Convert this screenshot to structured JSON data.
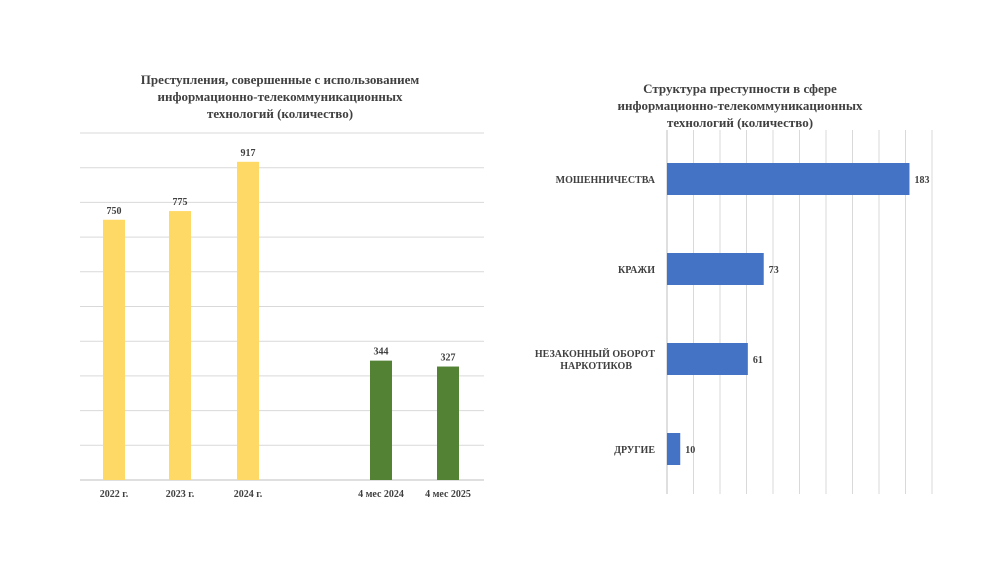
{
  "chart_data": [
    {
      "type": "bar",
      "title": "Преступления, совершенные с использованием\nинформационно-телекоммуникационных\nтехнологий (количество)",
      "categories": [
        "2022 г.",
        "2023 г.",
        "2024 г.",
        "4 мес 2024",
        "4 мес 2025"
      ],
      "values": [
        750,
        775,
        917,
        344,
        327
      ],
      "bar_colors": [
        "#FFD966",
        "#FFD966",
        "#FFD966",
        "#548235",
        "#548235"
      ],
      "ylim": [
        0,
        1000
      ],
      "grid": true,
      "data_labels": true
    },
    {
      "type": "bar",
      "orientation": "horizontal",
      "title": "Структура преступности в сфере\nинформационно-телекоммуникационных\nтехнологий (количество)",
      "categories": [
        "МОШЕННИЧЕСТВА",
        "КРАЖИ",
        "НЕЗАКОННЫЙ  ОБОРОТ\nНАРКОТИКОВ",
        "ДРУГИЕ"
      ],
      "values": [
        183,
        73,
        61,
        10
      ],
      "bar_color": "#4472C4",
      "xlim": [
        0,
        200
      ],
      "grid": true,
      "data_labels": true
    }
  ]
}
